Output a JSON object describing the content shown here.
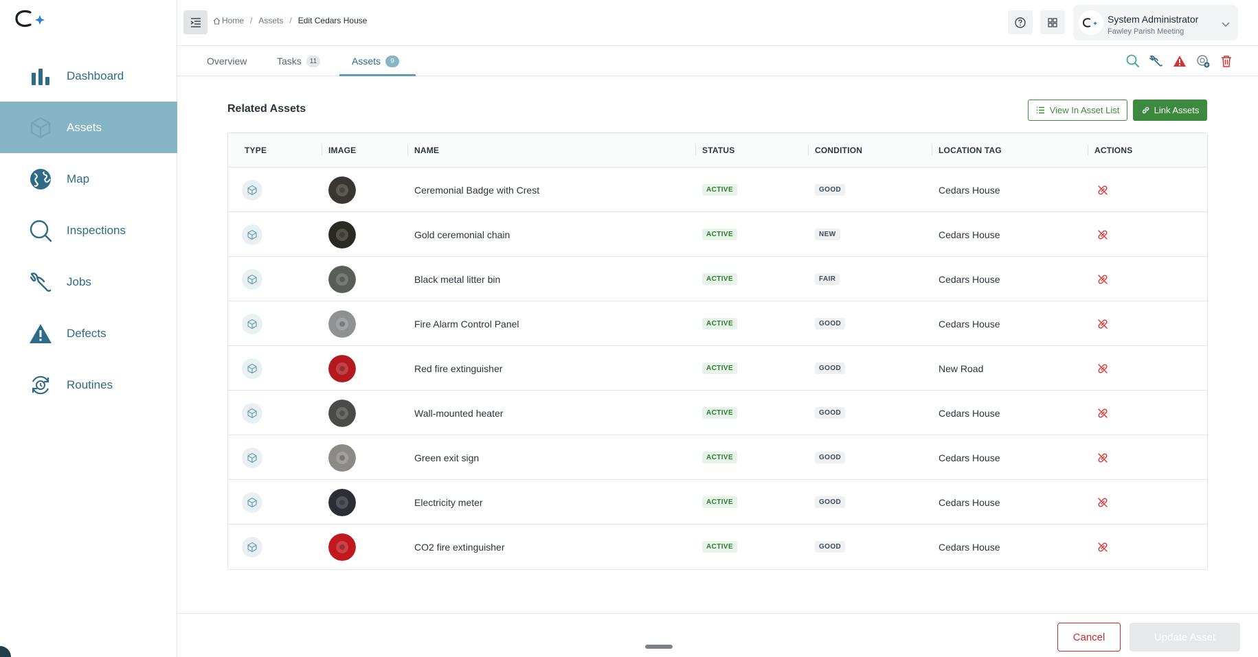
{
  "sidebar": {
    "items": [
      {
        "label": "Dashboard",
        "icon": "bar-chart-icon"
      },
      {
        "label": "Assets",
        "icon": "cube-icon",
        "active": true
      },
      {
        "label": "Map",
        "icon": "globe-icon"
      },
      {
        "label": "Inspections",
        "icon": "magnifier-icon"
      },
      {
        "label": "Jobs",
        "icon": "jobs-icon"
      },
      {
        "label": "Defects",
        "icon": "warning-triangle-icon"
      },
      {
        "label": "Routines",
        "icon": "routine-cycle-icon"
      }
    ]
  },
  "header": {
    "breadcrumb": {
      "home": "Home",
      "assets": "Assets",
      "current": "Edit Cedars House"
    },
    "user": {
      "name": "System Administrator",
      "org": "Fawley Parish Meeting"
    }
  },
  "tabs": [
    {
      "label": "Overview"
    },
    {
      "label": "Tasks",
      "count": "11"
    },
    {
      "label": "Assets",
      "count": "9",
      "active": true
    }
  ],
  "section": {
    "title": "Related Assets",
    "view_list_label": "View In Asset List",
    "link_assets_label": "Link Assets"
  },
  "table": {
    "columns": [
      "TYPE",
      "IMAGE",
      "NAME",
      "STATUS",
      "CONDITION",
      "LOCATION TAG",
      "ACTIONS"
    ],
    "rows": [
      {
        "name": "Ceremonial Badge with Crest",
        "status": "ACTIVE",
        "condition": "GOOD",
        "location": "Cedars House",
        "thumb_color": "#3a3530"
      },
      {
        "name": "Gold ceremonial chain",
        "status": "ACTIVE",
        "condition": "NEW",
        "location": "Cedars House",
        "thumb_color": "#2b2a22"
      },
      {
        "name": "Black metal litter bin",
        "status": "ACTIVE",
        "condition": "FAIR",
        "location": "Cedars House",
        "thumb_color": "#5a5e58"
      },
      {
        "name": "Fire Alarm Control Panel",
        "status": "ACTIVE",
        "condition": "GOOD",
        "location": "Cedars House",
        "thumb_color": "#8f9193"
      },
      {
        "name": "Red fire extinguisher",
        "status": "ACTIVE",
        "condition": "GOOD",
        "location": "New Road",
        "thumb_color": "#b3191f"
      },
      {
        "name": "Wall-mounted heater",
        "status": "ACTIVE",
        "condition": "GOOD",
        "location": "Cedars House",
        "thumb_color": "#4a4b48"
      },
      {
        "name": "Green exit sign",
        "status": "ACTIVE",
        "condition": "GOOD",
        "location": "Cedars House",
        "thumb_color": "#8b8a85"
      },
      {
        "name": "Electricity meter",
        "status": "ACTIVE",
        "condition": "GOOD",
        "location": "Cedars House",
        "thumb_color": "#2d2d35"
      },
      {
        "name": "CO2 fire extinguisher",
        "status": "ACTIVE",
        "condition": "GOOD",
        "location": "Cedars House",
        "thumb_color": "#c0181c"
      }
    ]
  },
  "footer": {
    "cancel_label": "Cancel",
    "update_label": "Update Asset"
  },
  "colors": {
    "accent": "#86b5c5",
    "primary_text": "#2d6b86",
    "green": "#3b8a3d",
    "danger": "#c92a2a"
  }
}
